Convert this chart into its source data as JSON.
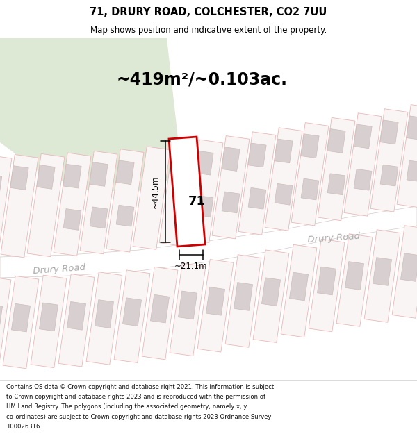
{
  "title_line1": "71, DRURY ROAD, COLCHESTER, CO2 7UU",
  "title_line2": "Map shows position and indicative extent of the property.",
  "area_text": "~419m²/~0.103ac.",
  "width_label": "~21.1m",
  "height_label": "~44.5m",
  "plot_number": "71",
  "road_name_left": "Drury Road",
  "road_name_right": "Drury Road",
  "footer_lines": [
    "Contains OS data © Crown copyright and database right 2021. This information is subject",
    "to Crown copyright and database rights 2023 and is reproduced with the permission of",
    "HM Land Registry. The polygons (including the associated geometry, namely x, y",
    "co-ordinates) are subject to Crown copyright and database rights 2023 Ordnance Survey",
    "100026316."
  ],
  "map_bg": "#f5efef",
  "parcel_edge": "#e8b8b8",
  "parcel_fill": "#faf5f5",
  "building_fill": "#d8d0d0",
  "building_edge": "#ccbcbc",
  "road_fill": "#ffffff",
  "road_edge": "#d8c8c8",
  "plot71_fill": "#ffffff",
  "plot71_edge": "#cc0000",
  "green_fill": "#dde8d5",
  "dim_color": "#000000"
}
